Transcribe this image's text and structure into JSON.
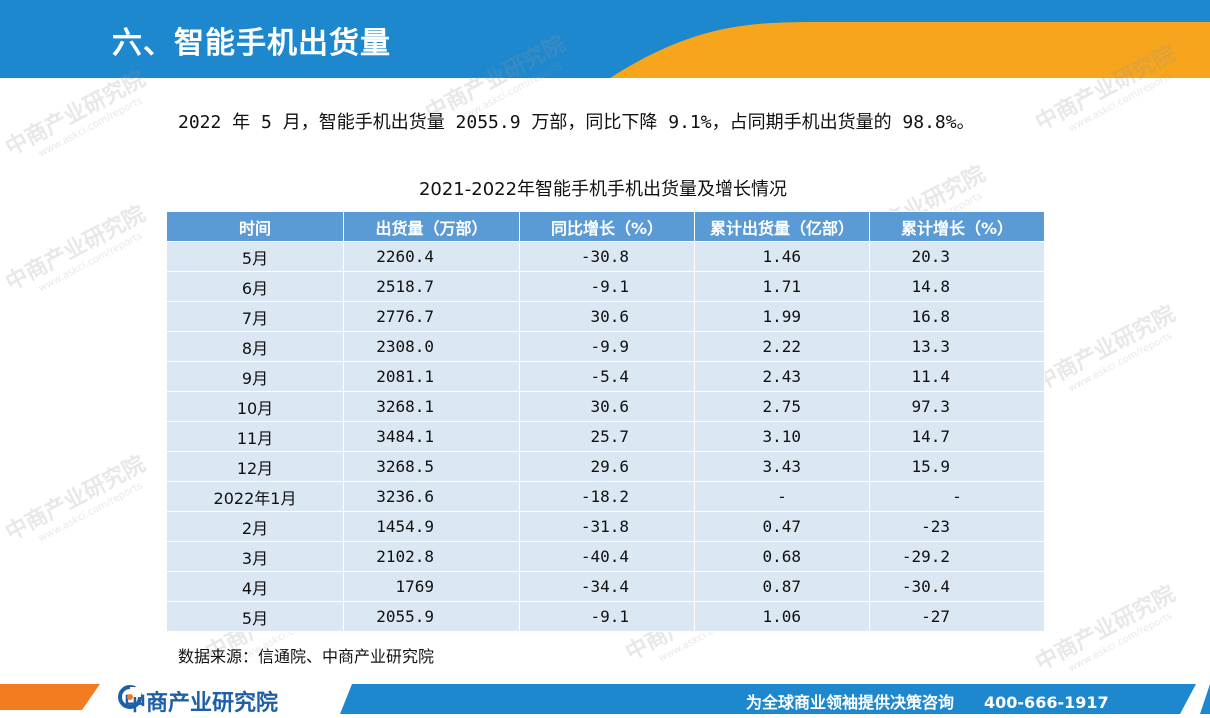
{
  "header": {
    "title": "六、智能手机出货量",
    "colors": {
      "band": "#1e88cf",
      "accent": "#f7a51c"
    }
  },
  "summary": "2022 年 5 月，智能手机出货量 2055.9 万部，同比下降 9.1%，占同期手机出货量的 98.8%。",
  "table": {
    "title": "2021-2022年智能手机手机出货量及增长情况",
    "headers": [
      "时间",
      "出货量（万部）",
      "同比增长（%）",
      "累计出货量（亿部）",
      "累计增长（%）"
    ],
    "rows": [
      [
        "5月",
        "2260.4",
        "-30.8",
        "1.46",
        "20.3"
      ],
      [
        "6月",
        "2518.7",
        "-9.1",
        "1.71",
        "14.8"
      ],
      [
        "7月",
        "2776.7",
        "30.6",
        "1.99",
        "16.8"
      ],
      [
        "8月",
        "2308.0",
        "-9.9",
        "2.22",
        "13.3"
      ],
      [
        "9月",
        "2081.1",
        "-5.4",
        "2.43",
        "11.4"
      ],
      [
        "10月",
        "3268.1",
        "30.6",
        "2.75",
        "97.3"
      ],
      [
        "11月",
        "3484.1",
        "25.7",
        "3.10",
        "14.7"
      ],
      [
        "12月",
        "3268.5",
        "29.6",
        "3.43",
        "15.9"
      ],
      [
        "2022年1月",
        "3236.6",
        "-18.2",
        "-",
        "-"
      ],
      [
        "2月",
        "1454.9",
        "-31.8",
        "0.47",
        "-23"
      ],
      [
        "3月",
        "2102.8",
        "-40.4",
        "0.68",
        "-29.2"
      ],
      [
        "4月",
        "1769",
        "-34.4",
        "0.87",
        "-30.4"
      ],
      [
        "5月",
        "2055.9",
        "-9.1",
        "1.06",
        "-27"
      ]
    ]
  },
  "source": "数据来源：信通院、中商产业研究院",
  "watermark": {
    "text": "中商产业研究院",
    "sub": "www.askci.com/reports"
  },
  "footer": {
    "logo_text": "中商产业研究院",
    "slogan": "为全球商业领袖提供决策咨询",
    "phone": "400-666-1917",
    "colors": {
      "orange": "#f47c20",
      "blue": "#1e88cf",
      "logo": "#1f5fa8"
    }
  }
}
